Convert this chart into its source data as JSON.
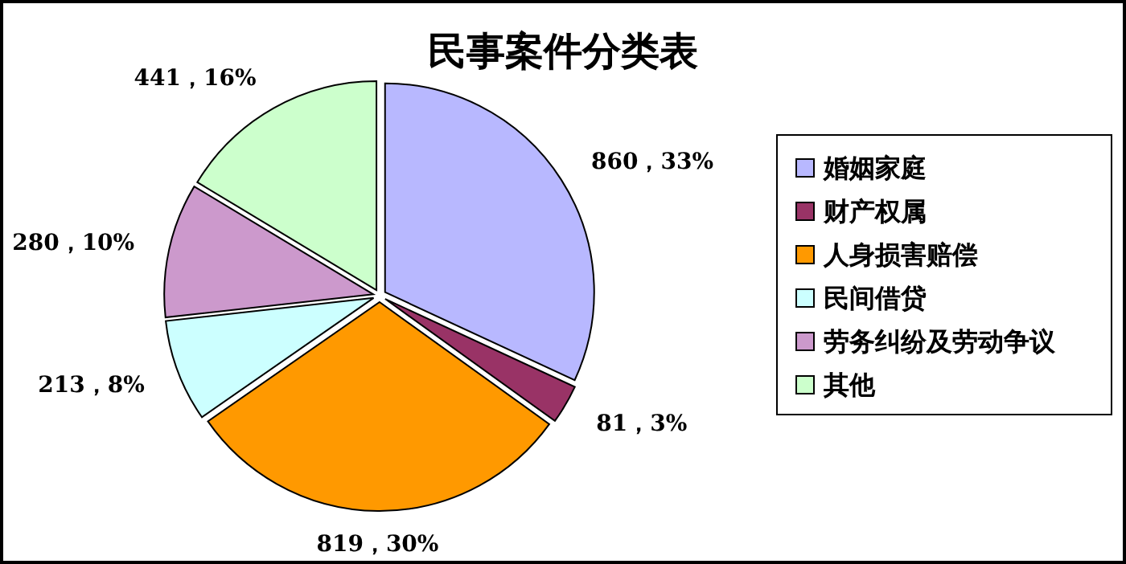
{
  "chart_data": {
    "type": "pie",
    "title": "民事案件分类表",
    "categories": [
      "婚姻家庭",
      "财产权属",
      "人身损害赔偿",
      "民间借贷",
      "劳务纠纷及劳动争议",
      "其他"
    ],
    "values": [
      860,
      81,
      819,
      213,
      280,
      441
    ],
    "value_labels": [
      "860，33%",
      "81，3%",
      "819，30%",
      "213，8%",
      "280，10%",
      "441，16%"
    ],
    "colors": [
      "#b8b8ff",
      "#993366",
      "#ff9900",
      "#ccffff",
      "#cc99cc",
      "#ccffcc"
    ],
    "legend": "right"
  }
}
